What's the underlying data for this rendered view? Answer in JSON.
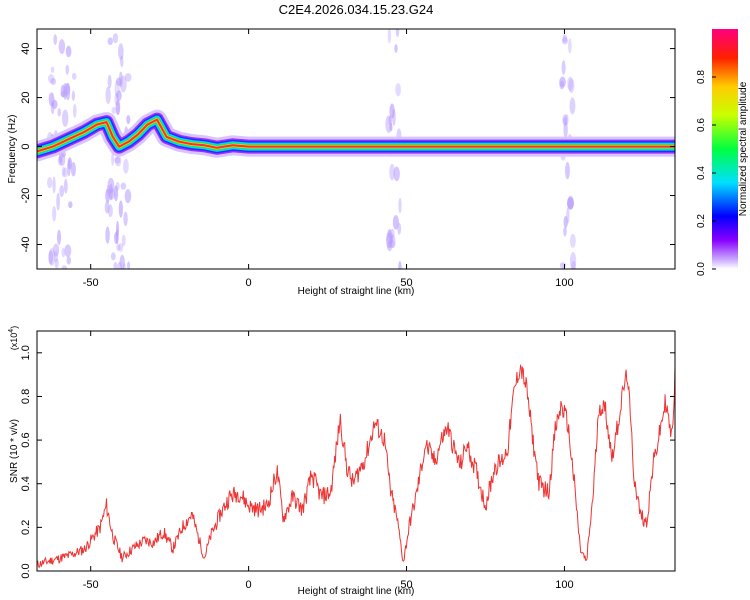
{
  "title": "C2E4.2026.034.15.23.G24",
  "chart_data": [
    {
      "type": "heatmap",
      "name": "spectrogram",
      "xlabel": "Height of straight line (km)",
      "ylabel": "Frequency (Hz)",
      "xlim": [
        -67,
        135
      ],
      "ylim": [
        -50,
        48
      ],
      "xticks": [
        -50,
        0,
        50,
        100
      ],
      "xtick_labels": [
        "-50",
        "0",
        "50",
        "100"
      ],
      "yticks": [
        -40,
        -20,
        0,
        20,
        40
      ],
      "ytick_labels": [
        "-40",
        "-20",
        "0",
        "20",
        "40"
      ],
      "ridge": {
        "x": [
          -67,
          -62,
          -57,
          -52,
          -48,
          -45,
          -43,
          -41,
          -38,
          -35,
          -32,
          -29,
          -26,
          -22,
          -18,
          -14,
          -10,
          -5,
          0,
          10,
          20,
          40,
          60,
          80,
          100,
          120,
          135
        ],
        "frequency": [
          -2,
          0,
          3,
          6,
          9,
          10,
          4,
          0,
          2,
          5,
          9,
          11,
          4,
          2,
          1,
          0.5,
          -0.5,
          0.5,
          0,
          0,
          0,
          0,
          0,
          0,
          0,
          0,
          0
        ]
      },
      "noise_columns_x": [
        -61,
        -57,
        -43,
        -40,
        46,
        101
      ],
      "colorbar": {
        "label": "Normalized spectral amplitude",
        "range": [
          0,
          1
        ],
        "ticks": [
          0.0,
          0.2,
          0.4,
          0.6,
          0.8
        ],
        "tick_labels": [
          "0.0",
          "0.2",
          "0.4",
          "0.6",
          "0.8"
        ]
      }
    },
    {
      "type": "line",
      "name": "snr",
      "xlabel": "Height of straight line (km)",
      "ylabel": "SNR (10 * v/v)",
      "y_multiplier": "(x10",
      "y_multiplier_exponent": "4",
      "y_multiplier_close": ")",
      "xlim": [
        -67,
        135
      ],
      "ylim": [
        0,
        1.1
      ],
      "xticks": [
        -50,
        0,
        50,
        100
      ],
      "xtick_labels": [
        "-50",
        "0",
        "50",
        "100"
      ],
      "yticks": [
        0,
        0.2,
        0.4,
        0.6,
        0.8,
        1.0
      ],
      "ytick_labels": [
        "0.0",
        "0.2",
        "0.4",
        "0.6",
        "0.8",
        "1.0"
      ],
      "series": [
        {
          "name": "SNR",
          "color": "#ee3333",
          "x": [
            -67,
            -62,
            -57,
            -52,
            -47,
            -45,
            -43,
            -40,
            -37,
            -33,
            -30,
            -27,
            -24,
            -21,
            -18,
            -14,
            -12,
            -9,
            -6,
            -3,
            0,
            3,
            6,
            9,
            11,
            14,
            17,
            20,
            23,
            26,
            29,
            31,
            33,
            35,
            37,
            40,
            43,
            45,
            47,
            49,
            51,
            53,
            56,
            59,
            61,
            63,
            65,
            67,
            69,
            72,
            75,
            78,
            80,
            82,
            84,
            86,
            88,
            90,
            92,
            95,
            97,
            99,
            101,
            103,
            105,
            107,
            109,
            111,
            113,
            115,
            117,
            119,
            120,
            122,
            124,
            126,
            128,
            130,
            132,
            134,
            135
          ],
          "y": [
            0.03,
            0.05,
            0.07,
            0.1,
            0.2,
            0.3,
            0.16,
            0.06,
            0.1,
            0.14,
            0.13,
            0.18,
            0.1,
            0.2,
            0.26,
            0.06,
            0.16,
            0.26,
            0.34,
            0.36,
            0.3,
            0.28,
            0.3,
            0.46,
            0.24,
            0.34,
            0.28,
            0.44,
            0.34,
            0.36,
            0.7,
            0.48,
            0.4,
            0.46,
            0.52,
            0.68,
            0.6,
            0.36,
            0.24,
            0.04,
            0.22,
            0.34,
            0.58,
            0.5,
            0.6,
            0.66,
            0.56,
            0.48,
            0.58,
            0.46,
            0.3,
            0.48,
            0.5,
            0.56,
            0.82,
            0.94,
            0.84,
            0.6,
            0.4,
            0.36,
            0.64,
            0.76,
            0.68,
            0.42,
            0.1,
            0.04,
            0.34,
            0.76,
            0.74,
            0.52,
            0.68,
            0.86,
            0.9,
            0.44,
            0.26,
            0.22,
            0.48,
            0.62,
            0.78,
            0.6,
            0.9
          ]
        }
      ]
    }
  ]
}
